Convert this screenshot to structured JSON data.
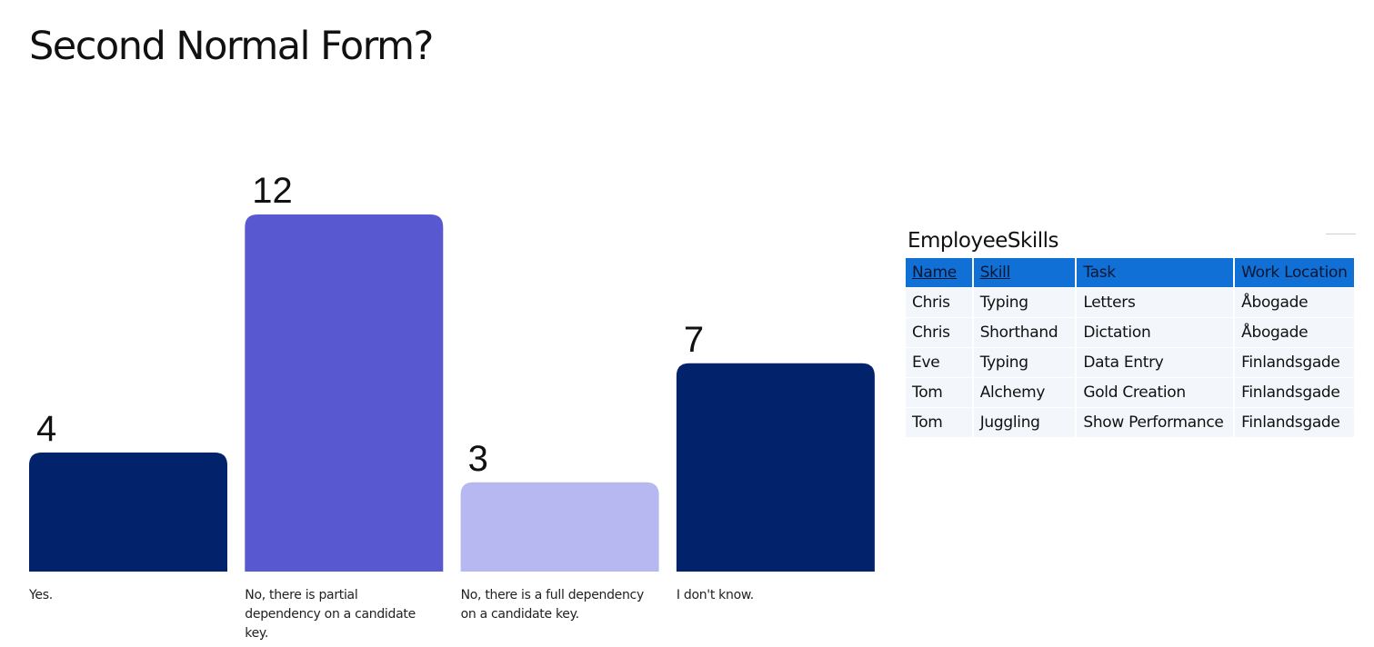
{
  "slide": {
    "title": "Second Normal Form?"
  },
  "chart_data": {
    "type": "bar",
    "categories": [
      "Yes.",
      "No, there is partial dependency on a candidate key.",
      "No, there is a full dependency on a candidate key.",
      "I don't know."
    ],
    "values": [
      4,
      12,
      3,
      7
    ],
    "colors": [
      "#02236b",
      "#5858d0",
      "#b7b7f2",
      "#02236b"
    ],
    "ylim": [
      0,
      12
    ],
    "grid": false,
    "legend": "none"
  },
  "table": {
    "title": "EmployeeSkills",
    "header_color": "#1170d6",
    "columns": [
      {
        "label": "Name",
        "key": true
      },
      {
        "label": "Skill",
        "key": true
      },
      {
        "label": "Task",
        "key": false
      },
      {
        "label": "Work Location",
        "key": false
      }
    ],
    "rows": [
      [
        "Chris",
        "Typing",
        "Letters",
        "Åbogade"
      ],
      [
        "Chris",
        "Shorthand",
        "Dictation",
        "Åbogade"
      ],
      [
        "Eve",
        "Typing",
        "Data Entry",
        "Finlandsgade"
      ],
      [
        "Tom",
        "Alchemy",
        "Gold Creation",
        "Finlandsgade"
      ],
      [
        "Tom",
        "Juggling",
        "Show Performance",
        "Finlandsgade"
      ]
    ]
  }
}
